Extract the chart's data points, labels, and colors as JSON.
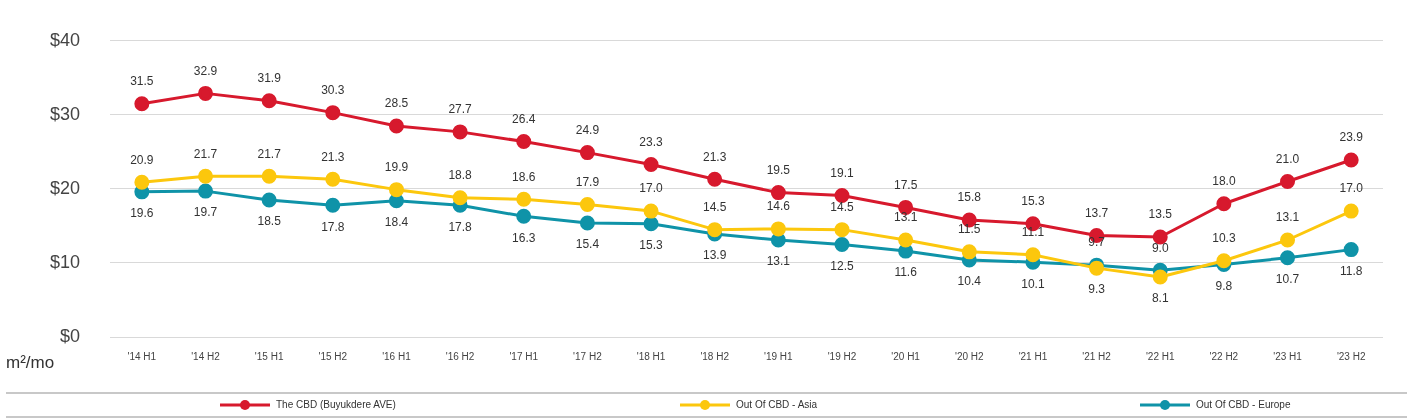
{
  "chart_data": {
    "type": "line",
    "ylabel": "m²/mo",
    "categories": [
      "'14 H1",
      "'14 H2",
      "'15 H1",
      "'15 H2",
      "'16 H1",
      "'16 H2",
      "'17 H1",
      "'17 H2",
      "'18 H1",
      "'18 H2",
      "'19 H1",
      "'19 H2",
      "'20 H1",
      "'20 H2",
      "'21 H1",
      "'21 H2",
      "'22 H1",
      "'22 H2",
      "'23 H1",
      "'23 H2"
    ],
    "series": [
      {
        "name": "The CBD (Buyukdere AVE)",
        "color": "#d7192d",
        "values": [
          31.5,
          32.9,
          31.9,
          30.3,
          28.5,
          27.7,
          26.4,
          24.9,
          23.3,
          21.3,
          19.5,
          19.1,
          17.5,
          15.8,
          15.3,
          13.7,
          13.5,
          18.0,
          21.0,
          23.9
        ],
        "value_labels": [
          "31.5",
          "32.9",
          "31.9",
          "30.3",
          "28.5",
          "27.7",
          "26.4",
          "24.9",
          "23.3",
          "21.3",
          "19.5",
          "19.1",
          "17.5",
          "15.8",
          "15.3",
          "13.7",
          "13.5",
          "18.0",
          "21.0",
          "23.9"
        ]
      },
      {
        "name": "Out Of CBD - Asia",
        "color": "#fcc70d",
        "values": [
          20.9,
          21.7,
          21.7,
          21.3,
          19.9,
          18.8,
          18.6,
          17.9,
          17.0,
          14.5,
          14.6,
          14.5,
          13.1,
          11.5,
          11.1,
          9.3,
          8.1,
          10.3,
          13.1,
          17.0
        ],
        "value_labels": [
          "20.9",
          "21.7",
          "21.7",
          "21.3",
          "19.9",
          "18.8",
          "18.6",
          "17.9",
          "17.0",
          "14.5",
          "14.6",
          "14.5",
          "13.1",
          "11.5",
          "11.1",
          "9.3",
          "8.1",
          "10.3",
          "13.1",
          "17.0"
        ]
      },
      {
        "name": "Out Of CBD - Europe",
        "color": "#0f93a8",
        "values": [
          19.6,
          19.7,
          18.5,
          17.8,
          18.4,
          17.8,
          16.3,
          15.4,
          15.3,
          13.9,
          13.1,
          12.5,
          11.6,
          10.4,
          10.1,
          9.7,
          9.0,
          9.8,
          10.7,
          11.8
        ],
        "value_labels": [
          "19.6",
          "19.7",
          "18.5",
          "17.8",
          "18.4",
          "17.8",
          "16.3",
          "15.4",
          "15.3",
          "13.9",
          "13.1",
          "12.5",
          "11.6",
          "10.4",
          "10.1",
          "9.7",
          "9.0",
          "9.8",
          "10.7",
          "11.8"
        ]
      }
    ],
    "ylim": [
      0,
      40
    ],
    "yticks": [
      {
        "value": 0,
        "label": "$0"
      },
      {
        "value": 10,
        "label": "$10"
      },
      {
        "value": 20,
        "label": "$20"
      },
      {
        "value": 30,
        "label": "$30"
      },
      {
        "value": 40,
        "label": "$40"
      }
    ],
    "grid": "y",
    "legend": "bottom",
    "marker": "circle",
    "line_style": "solid"
  }
}
